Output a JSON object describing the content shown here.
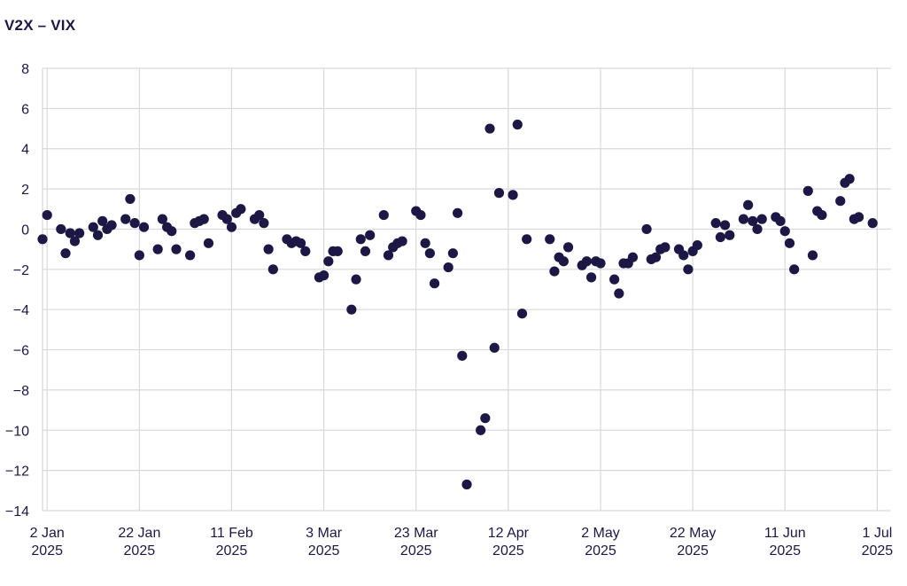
{
  "chart_data": {
    "type": "scatter",
    "title": "V2X – VIX",
    "xlabel": "",
    "ylabel": "",
    "ylim": [
      -14,
      8
    ],
    "yticks": [
      8,
      6,
      4,
      2,
      0,
      -2,
      -4,
      -6,
      -8,
      -10,
      -12,
      -14
    ],
    "xlim": [
      "2025-01-01",
      "2025-07-04"
    ],
    "xticks": [
      {
        "date": "2025-01-02",
        "line1": "2 Jan",
        "line2": "2025"
      },
      {
        "date": "2025-01-22",
        "line1": "22 Jan",
        "line2": "2025"
      },
      {
        "date": "2025-02-11",
        "line1": "11 Feb",
        "line2": "2025"
      },
      {
        "date": "2025-03-03",
        "line1": "3 Mar",
        "line2": "2025"
      },
      {
        "date": "2025-03-23",
        "line1": "23 Mar",
        "line2": "2025"
      },
      {
        "date": "2025-04-12",
        "line1": "12 Apr",
        "line2": "2025"
      },
      {
        "date": "2025-05-02",
        "line1": "2 May",
        "line2": "2025"
      },
      {
        "date": "2025-05-22",
        "line1": "22 May",
        "line2": "2025"
      },
      {
        "date": "2025-06-11",
        "line1": "11 Jun",
        "line2": "2025"
      },
      {
        "date": "2025-07-01",
        "line1": "1 Jul",
        "line2": "2025"
      }
    ],
    "grid": true,
    "marker_color": "#1c1745",
    "grid_color": "#d9d9d9",
    "points": [
      {
        "x": "2025-01-01",
        "y": -0.5
      },
      {
        "x": "2025-01-02",
        "y": 0.7
      },
      {
        "x": "2025-01-05",
        "y": 0.0
      },
      {
        "x": "2025-01-06",
        "y": -1.2
      },
      {
        "x": "2025-01-07",
        "y": -0.2
      },
      {
        "x": "2025-01-08",
        "y": -0.6
      },
      {
        "x": "2025-01-09",
        "y": -0.2
      },
      {
        "x": "2025-01-12",
        "y": 0.1
      },
      {
        "x": "2025-01-13",
        "y": -0.3
      },
      {
        "x": "2025-01-14",
        "y": 0.4
      },
      {
        "x": "2025-01-15",
        "y": 0.0
      },
      {
        "x": "2025-01-16",
        "y": 0.2
      },
      {
        "x": "2025-01-19",
        "y": 0.5
      },
      {
        "x": "2025-01-20",
        "y": 1.5
      },
      {
        "x": "2025-01-21",
        "y": 0.3
      },
      {
        "x": "2025-01-22",
        "y": -1.3
      },
      {
        "x": "2025-01-23",
        "y": 0.1
      },
      {
        "x": "2025-01-26",
        "y": -1.0
      },
      {
        "x": "2025-01-27",
        "y": 0.5
      },
      {
        "x": "2025-01-28",
        "y": 0.1
      },
      {
        "x": "2025-01-29",
        "y": -0.1
      },
      {
        "x": "2025-01-30",
        "y": -1.0
      },
      {
        "x": "2025-02-02",
        "y": -1.3
      },
      {
        "x": "2025-02-03",
        "y": 0.3
      },
      {
        "x": "2025-02-04",
        "y": 0.4
      },
      {
        "x": "2025-02-05",
        "y": 0.5
      },
      {
        "x": "2025-02-06",
        "y": -0.7
      },
      {
        "x": "2025-02-09",
        "y": 0.7
      },
      {
        "x": "2025-02-10",
        "y": 0.5
      },
      {
        "x": "2025-02-11",
        "y": 0.1
      },
      {
        "x": "2025-02-12",
        "y": 0.8
      },
      {
        "x": "2025-02-13",
        "y": 1.0
      },
      {
        "x": "2025-02-16",
        "y": 0.5
      },
      {
        "x": "2025-02-17",
        "y": 0.7
      },
      {
        "x": "2025-02-18",
        "y": 0.3
      },
      {
        "x": "2025-02-19",
        "y": -1.0
      },
      {
        "x": "2025-02-20",
        "y": -2.0
      },
      {
        "x": "2025-02-23",
        "y": -0.5
      },
      {
        "x": "2025-02-24",
        "y": -0.7
      },
      {
        "x": "2025-02-25",
        "y": -0.6
      },
      {
        "x": "2025-02-26",
        "y": -0.7
      },
      {
        "x": "2025-02-27",
        "y": -1.1
      },
      {
        "x": "2025-03-02",
        "y": -2.4
      },
      {
        "x": "2025-03-03",
        "y": -2.3
      },
      {
        "x": "2025-03-04",
        "y": -1.6
      },
      {
        "x": "2025-03-05",
        "y": -1.1
      },
      {
        "x": "2025-03-06",
        "y": -1.1
      },
      {
        "x": "2025-03-09",
        "y": -4.0
      },
      {
        "x": "2025-03-10",
        "y": -2.5
      },
      {
        "x": "2025-03-11",
        "y": -0.5
      },
      {
        "x": "2025-03-12",
        "y": -1.1
      },
      {
        "x": "2025-03-13",
        "y": -0.3
      },
      {
        "x": "2025-03-16",
        "y": 0.7
      },
      {
        "x": "2025-03-17",
        "y": -1.3
      },
      {
        "x": "2025-03-18",
        "y": -0.9
      },
      {
        "x": "2025-03-19",
        "y": -0.7
      },
      {
        "x": "2025-03-20",
        "y": -0.6
      },
      {
        "x": "2025-03-23",
        "y": 0.9
      },
      {
        "x": "2025-03-24",
        "y": 0.7
      },
      {
        "x": "2025-03-25",
        "y": -0.7
      },
      {
        "x": "2025-03-26",
        "y": -1.2
      },
      {
        "x": "2025-03-27",
        "y": -2.7
      },
      {
        "x": "2025-03-30",
        "y": -1.9
      },
      {
        "x": "2025-03-31",
        "y": -1.2
      },
      {
        "x": "2025-04-01",
        "y": 0.8
      },
      {
        "x": "2025-04-02",
        "y": -6.3
      },
      {
        "x": "2025-04-03",
        "y": -12.7
      },
      {
        "x": "2025-04-06",
        "y": -10.0
      },
      {
        "x": "2025-04-07",
        "y": -9.4
      },
      {
        "x": "2025-04-08",
        "y": 5.0
      },
      {
        "x": "2025-04-09",
        "y": -5.9
      },
      {
        "x": "2025-04-10",
        "y": 1.8
      },
      {
        "x": "2025-04-13",
        "y": 1.7
      },
      {
        "x": "2025-04-14",
        "y": 5.2
      },
      {
        "x": "2025-04-15",
        "y": -4.2
      },
      {
        "x": "2025-04-16",
        "y": -0.5
      },
      {
        "x": "2025-04-21",
        "y": -0.5
      },
      {
        "x": "2025-04-22",
        "y": -2.1
      },
      {
        "x": "2025-04-23",
        "y": -1.4
      },
      {
        "x": "2025-04-24",
        "y": -1.6
      },
      {
        "x": "2025-04-25",
        "y": -0.9
      },
      {
        "x": "2025-04-28",
        "y": -1.8
      },
      {
        "x": "2025-04-29",
        "y": -1.6
      },
      {
        "x": "2025-04-30",
        "y": -2.4
      },
      {
        "x": "2025-05-01",
        "y": -1.6
      },
      {
        "x": "2025-05-02",
        "y": -1.7
      },
      {
        "x": "2025-05-05",
        "y": -2.5
      },
      {
        "x": "2025-05-06",
        "y": -3.2
      },
      {
        "x": "2025-05-07",
        "y": -1.7
      },
      {
        "x": "2025-05-08",
        "y": -1.7
      },
      {
        "x": "2025-05-09",
        "y": -1.4
      },
      {
        "x": "2025-05-12",
        "y": 0.0
      },
      {
        "x": "2025-05-13",
        "y": -1.5
      },
      {
        "x": "2025-05-14",
        "y": -1.4
      },
      {
        "x": "2025-05-15",
        "y": -1.0
      },
      {
        "x": "2025-05-16",
        "y": -0.9
      },
      {
        "x": "2025-05-19",
        "y": -1.0
      },
      {
        "x": "2025-05-20",
        "y": -1.3
      },
      {
        "x": "2025-05-21",
        "y": -2.0
      },
      {
        "x": "2025-05-22",
        "y": -1.1
      },
      {
        "x": "2025-05-23",
        "y": -0.8
      },
      {
        "x": "2025-05-27",
        "y": 0.3
      },
      {
        "x": "2025-05-28",
        "y": -0.4
      },
      {
        "x": "2025-05-29",
        "y": 0.2
      },
      {
        "x": "2025-05-30",
        "y": -0.3
      },
      {
        "x": "2025-06-02",
        "y": 0.5
      },
      {
        "x": "2025-06-03",
        "y": 1.2
      },
      {
        "x": "2025-06-04",
        "y": 0.4
      },
      {
        "x": "2025-06-05",
        "y": 0.0
      },
      {
        "x": "2025-06-06",
        "y": 0.5
      },
      {
        "x": "2025-06-09",
        "y": 0.6
      },
      {
        "x": "2025-06-10",
        "y": 0.4
      },
      {
        "x": "2025-06-11",
        "y": -0.1
      },
      {
        "x": "2025-06-12",
        "y": -0.7
      },
      {
        "x": "2025-06-13",
        "y": -2.0
      },
      {
        "x": "2025-06-16",
        "y": 1.9
      },
      {
        "x": "2025-06-17",
        "y": -1.3
      },
      {
        "x": "2025-06-18",
        "y": 0.9
      },
      {
        "x": "2025-06-19",
        "y": 0.7
      },
      {
        "x": "2025-06-23",
        "y": 1.4
      },
      {
        "x": "2025-06-24",
        "y": 2.3
      },
      {
        "x": "2025-06-25",
        "y": 2.5
      },
      {
        "x": "2025-06-26",
        "y": 0.5
      },
      {
        "x": "2025-06-27",
        "y": 0.6
      },
      {
        "x": "2025-06-30",
        "y": 0.3
      }
    ]
  }
}
